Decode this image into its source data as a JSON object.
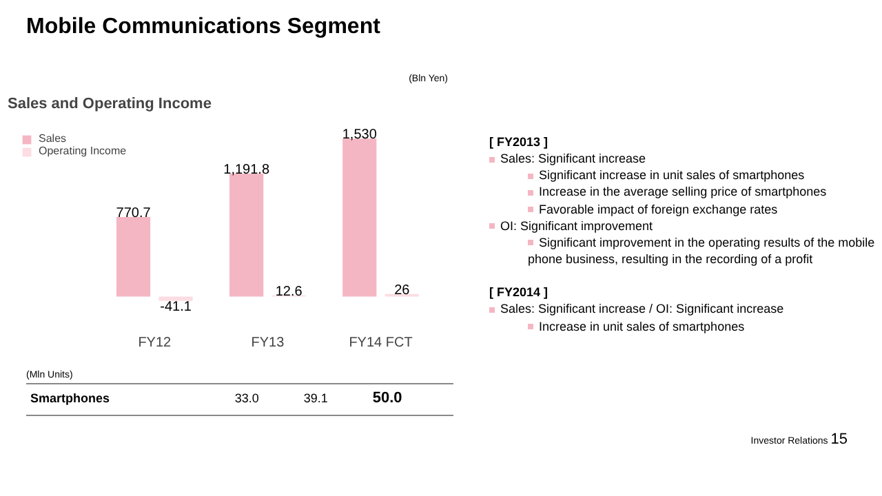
{
  "chart_data": {
    "type": "bar",
    "title": "Sales and Operating Income",
    "categories": [
      "FY12",
      "FY13",
      "FY14 FCT"
    ],
    "series": [
      {
        "name": "Sales",
        "color": "#f4b6c2",
        "values": [
          770.7,
          1191.8,
          1530
        ],
        "value_labels": [
          "770.7",
          "1,191.8",
          "1,530"
        ]
      },
      {
        "name": "Operating Income",
        "color": "#fbdde3",
        "values": [
          -41.1,
          12.6,
          26
        ],
        "value_labels": [
          "-41.1",
          "12.6",
          "26"
        ]
      }
    ],
    "legend": "top left",
    "annotations": [
      "Mobile Communications Segment",
      "(Bln Yen)",
      "(Mln Units)",
      "Smartphones",
      "33.0",
      "39.1",
      "50.0",
      "[ FY2013 ]",
      "Sales: Significant increase",
      "Significant increase in unit sales of smartphones",
      "Increase in the average selling price of smartphones",
      "Favorable impact of foreign exchange rates",
      "OI: Significant improvement",
      "Significant improvement in the operating results of the mobile phone business, resulting in the recording of a profit",
      "[ FY2014 ]",
      "Sales: Significant increase / OI: Significant increase",
      "Increase in unit sales of smartphones",
      "Investor Relations",
      "15"
    ]
  }
}
